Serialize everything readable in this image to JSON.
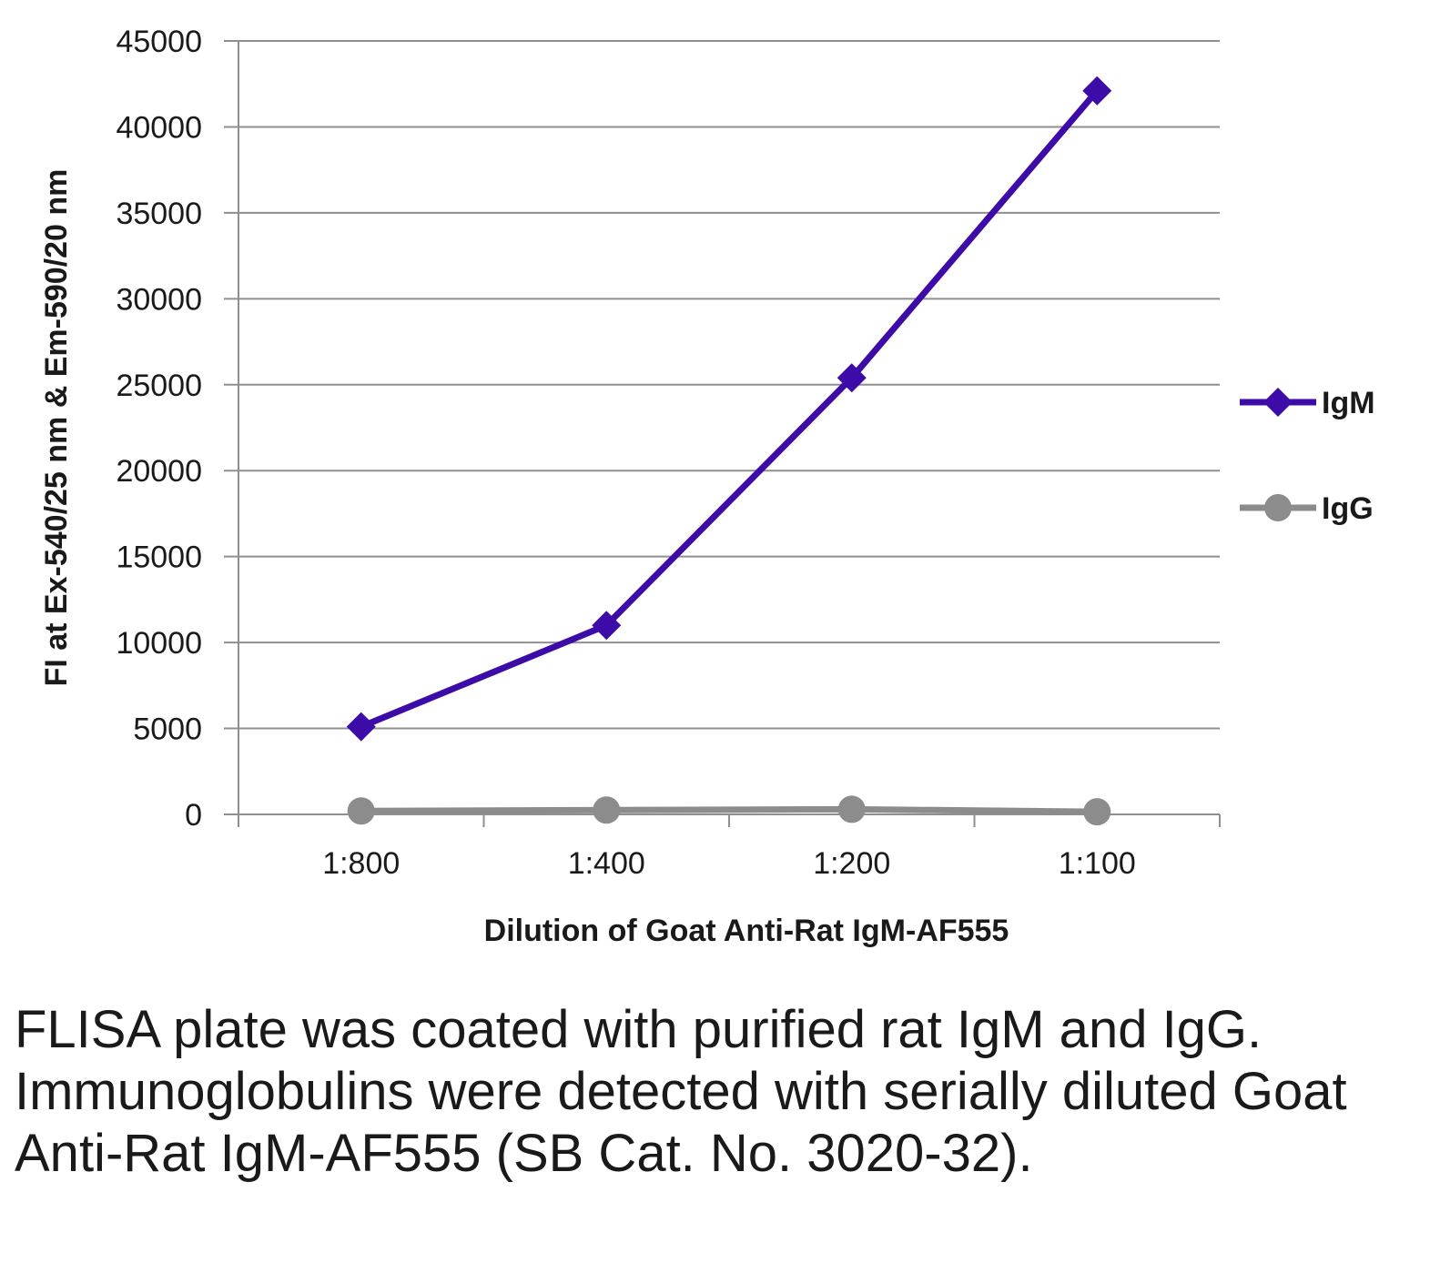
{
  "chart_data": {
    "type": "line",
    "categories": [
      "1:800",
      "1:400",
      "1:200",
      "1:100"
    ],
    "series": [
      {
        "name": "IgM",
        "values": [
          5100,
          11000,
          25400,
          42100
        ],
        "color": "#3d0ca8",
        "marker": "diamond"
      },
      {
        "name": "IgG",
        "values": [
          200,
          250,
          300,
          150
        ],
        "color": "#8c8c8c",
        "marker": "circle"
      }
    ],
    "xlabel": "Dilution of Goat Anti-Rat IgM-AF555",
    "ylabel": "FI at Ex-540/25 nm & Em-590/20 nm",
    "ylim": [
      0,
      45000
    ],
    "yticks": [
      "0",
      "5000",
      "10000",
      "15000",
      "20000",
      "25000",
      "30000",
      "35000",
      "40000",
      "45000"
    ],
    "grid": true,
    "legend": "right"
  },
  "caption": "FLISA plate was coated with purified rat IgM and IgG.  Immunoglobulins were detected with serially diluted Goat Anti-Rat IgM-AF555 (SB Cat. No. 3020-32)."
}
